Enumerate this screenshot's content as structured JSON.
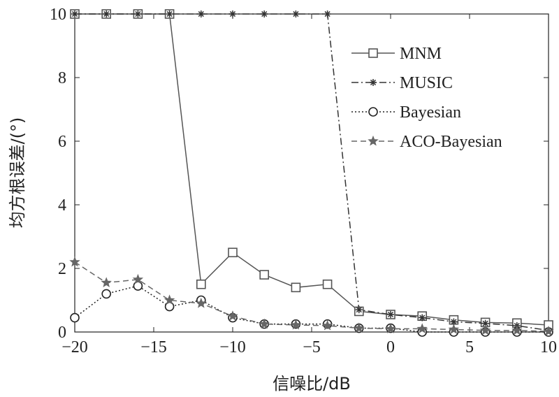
{
  "chart_data": {
    "type": "line",
    "title": "",
    "xlabel": "信噪比/dB",
    "ylabel": "均方根误差/(°)",
    "xlim": [
      -20,
      10
    ],
    "ylim": [
      0,
      10
    ],
    "xticks": [
      -20,
      -15,
      -10,
      -5,
      0,
      5,
      10
    ],
    "yticks": [
      0,
      2,
      4,
      6,
      8,
      10
    ],
    "xtick_labels": [
      "−20",
      "−15",
      "−10",
      "−5",
      "0",
      "5",
      "10"
    ],
    "ytick_labels": [
      "0",
      "2",
      "4",
      "6",
      "8",
      "10"
    ],
    "grid": false,
    "legend_position": "top-right",
    "x": [
      -20,
      -18,
      -16,
      -14,
      -12,
      -10,
      -8,
      -6,
      -4,
      -2,
      0,
      2,
      4,
      6,
      8,
      10
    ],
    "series": [
      {
        "name": "MNM",
        "marker": "square",
        "line": "solid",
        "color": "#555555",
        "values": [
          10,
          10,
          10,
          10,
          1.5,
          2.5,
          1.8,
          1.4,
          1.5,
          0.65,
          0.55,
          0.5,
          0.38,
          0.3,
          0.28,
          0.22
        ]
      },
      {
        "name": "MUSIC",
        "marker": "asterisk",
        "line": "dashdot",
        "color": "#333333",
        "values": [
          10,
          10,
          10,
          10,
          10,
          10,
          10,
          10,
          10,
          0.7,
          0.55,
          0.45,
          0.32,
          0.27,
          0.2,
          0.05
        ]
      },
      {
        "name": "Bayesian",
        "marker": "circle",
        "line": "dotted",
        "color": "#222222",
        "values": [
          0.45,
          1.2,
          1.45,
          0.8,
          1.0,
          0.45,
          0.25,
          0.25,
          0.25,
          0.12,
          0.12,
          0.0,
          0.0,
          0.0,
          0.0,
          0.0
        ]
      },
      {
        "name": "ACO-Bayesian",
        "marker": "star",
        "line": "dashed",
        "color": "#666666",
        "values": [
          2.2,
          1.55,
          1.65,
          1.0,
          0.9,
          0.5,
          0.25,
          0.22,
          0.2,
          0.12,
          0.1,
          0.1,
          0.08,
          0.05,
          0.05,
          0.02
        ]
      }
    ]
  }
}
